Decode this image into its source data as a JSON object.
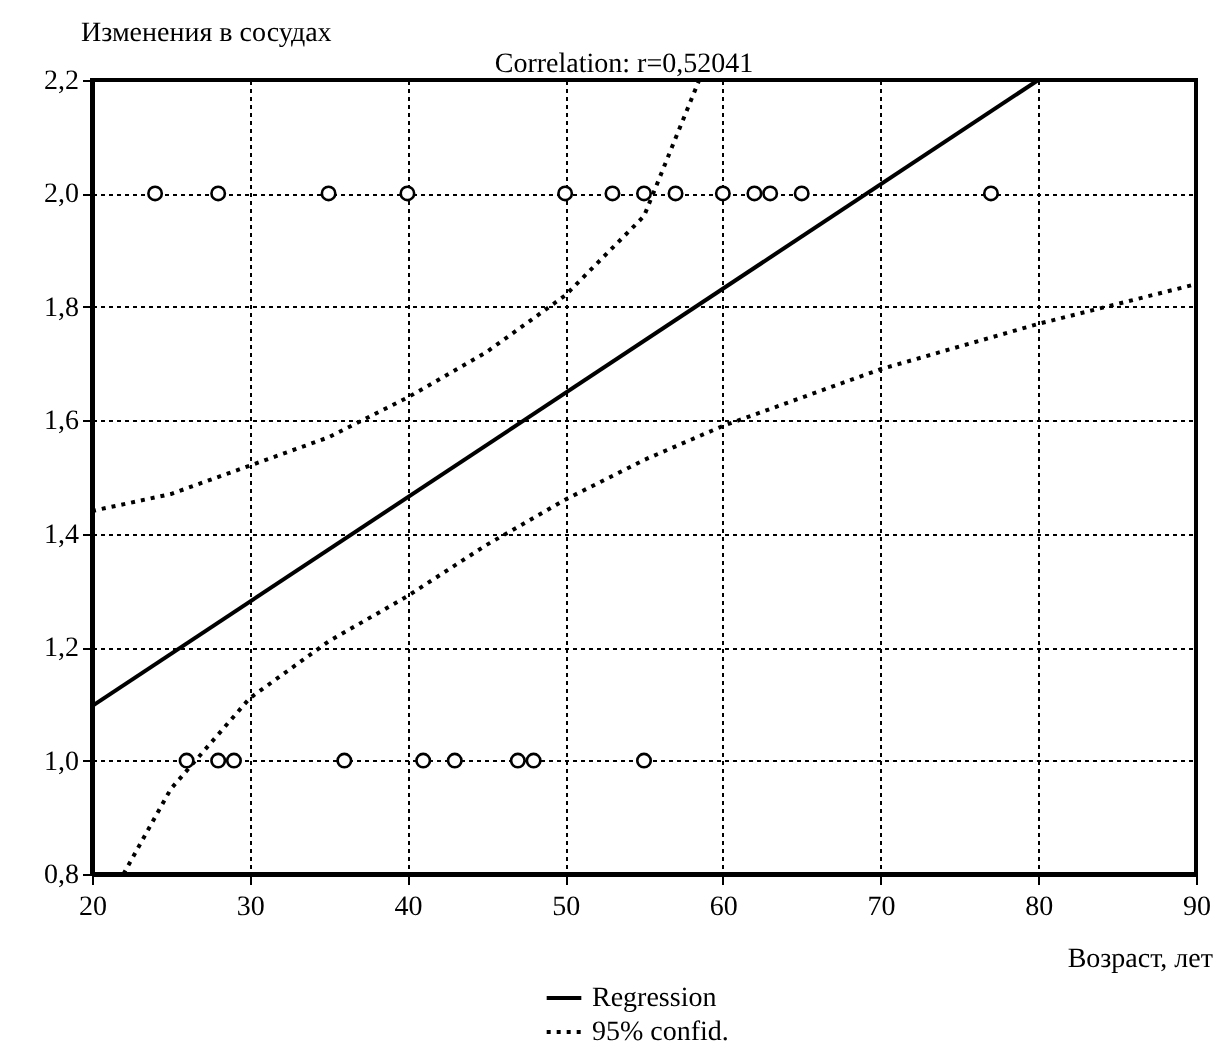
{
  "chart_data": {
    "type": "scatter",
    "title": "Correlation: r=0,52041",
    "xlabel": "Возраст, лет",
    "ylabel": "Изменения в сосудах",
    "xlim": [
      20,
      90
    ],
    "xticks": [
      20,
      30,
      40,
      50,
      60,
      70,
      80,
      90
    ],
    "ylim": [
      0.8,
      2.2
    ],
    "yticks": [
      {
        "value": 0.8,
        "label": "0,8"
      },
      {
        "value": 1.0,
        "label": "1,0"
      },
      {
        "value": 1.2,
        "label": "1,2"
      },
      {
        "value": 1.4,
        "label": "1,4"
      },
      {
        "value": 1.6,
        "label": "1,6"
      },
      {
        "value": 1.8,
        "label": "1,8"
      },
      {
        "value": 2.0,
        "label": "2,0"
      },
      {
        "value": 2.2,
        "label": "2,2"
      }
    ],
    "grid": true,
    "legend": "bottom",
    "series": [
      {
        "marker": "circle",
        "color": "#000000",
        "x": [
          24,
          28,
          35,
          40,
          50,
          53,
          55,
          57,
          60,
          62,
          63,
          65,
          77,
          26,
          28,
          29,
          36,
          41,
          43,
          47,
          48,
          55
        ],
        "values": [
          2,
          2,
          2,
          2,
          2,
          2,
          2,
          2,
          2,
          2,
          2,
          2,
          2,
          1,
          1,
          1,
          1,
          1,
          1,
          1,
          1,
          1
        ]
      },
      {
        "type": "line",
        "name": "Regression",
        "color": "#000000",
        "line_style": "solid",
        "x": [
          20,
          80
        ],
        "values": [
          1.096,
          2.2
        ]
      },
      {
        "type": "line",
        "name": "95% confid.",
        "color": "#000000",
        "line_style": "dotted",
        "x": [
          20,
          25,
          30,
          35,
          40,
          45,
          50,
          55,
          58.5
        ],
        "values": [
          1.44,
          1.47,
          1.52,
          1.57,
          1.64,
          1.72,
          1.82,
          1.96,
          2.2
        ]
      },
      {
        "type": "line",
        "color": "#000000",
        "line_style": "dotted",
        "x": [
          22,
          25,
          30,
          35,
          40,
          45,
          50,
          55,
          60,
          70,
          80,
          90
        ],
        "values": [
          0.8,
          0.95,
          1.11,
          1.21,
          1.29,
          1.38,
          1.46,
          1.53,
          1.59,
          1.69,
          1.77,
          1.84
        ]
      }
    ]
  }
}
